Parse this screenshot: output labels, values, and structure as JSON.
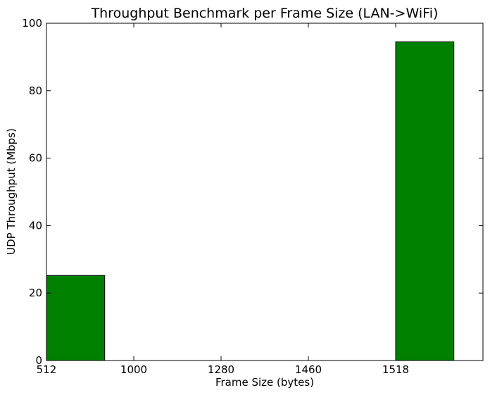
{
  "chart_data": {
    "type": "bar",
    "title": "Throughput Benchmark per Frame Size (LAN->WiFi)",
    "xlabel": "Frame Size (bytes)",
    "ylabel": "UDP Throughput (Mbps)",
    "categories": [
      "512",
      "1000",
      "1280",
      "1460",
      "1518"
    ],
    "values": [
      25.2,
      0,
      0,
      0,
      94.5
    ],
    "ylim": [
      0,
      100
    ],
    "yticks": [
      0,
      20,
      40,
      60,
      80,
      100
    ],
    "bar_color": "#008000",
    "grid": false,
    "legend": "none"
  }
}
